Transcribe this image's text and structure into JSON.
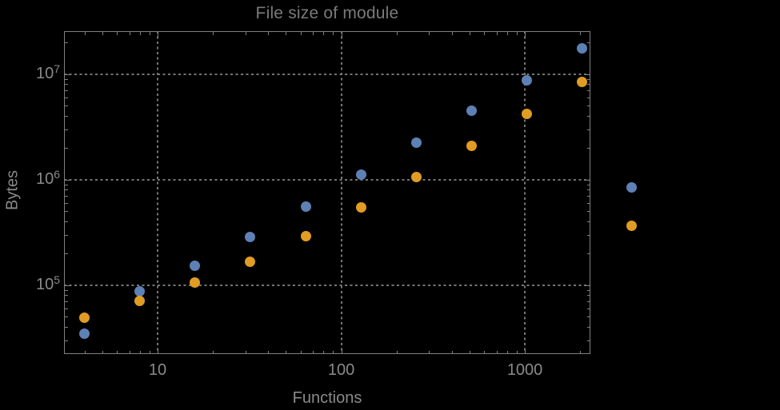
{
  "colors": {
    "background": "#000000",
    "frame": "#808080",
    "grid": "#757575",
    "title_text": "#7a7a7a",
    "label_text": "#8a8a8a",
    "series_blue": "#5e81b5",
    "series_orange": "#e19c24"
  },
  "chart_data": {
    "type": "scatter",
    "title": "File size of module",
    "xlabel": "Functions",
    "ylabel": "Bytes",
    "x_scale": "log",
    "y_scale": "log",
    "grid": "dotted",
    "legend": "none",
    "x_range": [
      3.09,
      2275
    ],
    "y_range": [
      22130,
      25450000
    ],
    "x_major_ticks": [
      10,
      100,
      1000
    ],
    "x_tick_labels": [
      "10",
      "100",
      "1000"
    ],
    "y_major_ticks": [
      100000,
      1000000,
      10000000
    ],
    "y_tick_label_base": "10",
    "y_tick_label_exponents": [
      5,
      6,
      7
    ],
    "x": [
      4,
      8,
      16,
      32,
      64,
      128,
      256,
      512,
      1024,
      2048,
      3800
    ],
    "series": [
      {
        "name": "series-blue",
        "color": "#5e81b5",
        "values": [
          34500,
          87000,
          152000,
          285000,
          552000,
          1110000,
          2230000,
          4480000,
          8700000,
          17500000,
          840000
        ]
      },
      {
        "name": "series-orange",
        "color": "#e19c24",
        "values": [
          48900,
          70500,
          105000,
          166000,
          290000,
          543000,
          1050000,
          2080000,
          4180000,
          8400000,
          364000
        ]
      }
    ]
  }
}
